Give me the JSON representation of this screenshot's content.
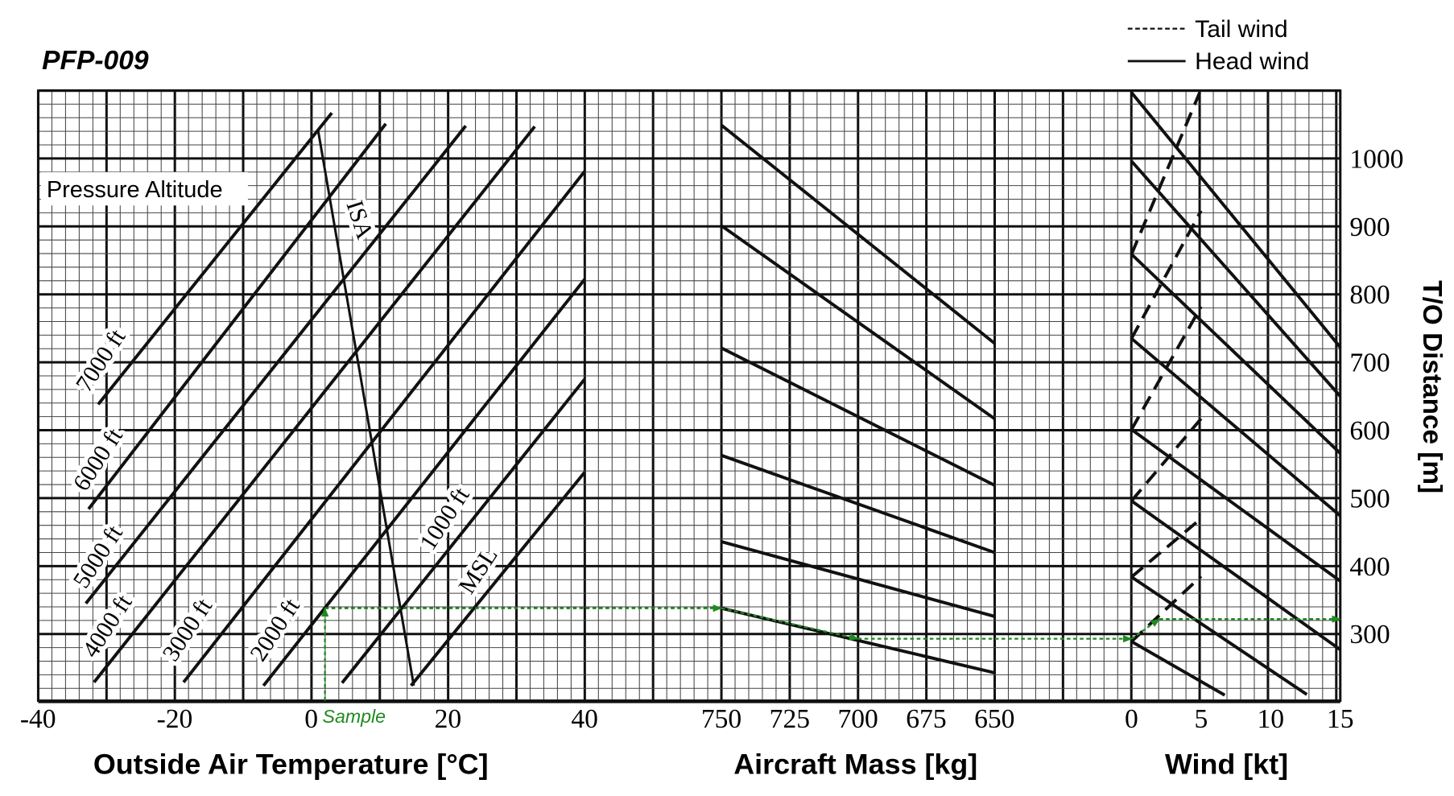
{
  "chart_data": {
    "type": "line",
    "title": "PFP-009",
    "ylabel": "T/O Distance [m]",
    "ylim": [
      200,
      1100
    ],
    "yticks": [
      300,
      400,
      500,
      600,
      700,
      800,
      900,
      1000
    ],
    "grid": true,
    "legend": {
      "position": "top-right",
      "tail_wind": "Tail wind",
      "head_wind": "Head wind"
    },
    "panels": [
      {
        "id": "temperature",
        "xlabel": "Outside Air Temperature [°C]",
        "xlim": [
          -40,
          40
        ],
        "xticks": [
          -40,
          -20,
          0,
          20,
          40
        ],
        "group_label": "Pressure Altitude",
        "series": [
          {
            "name": "7000 ft",
            "points": [
              [
                -31.2,
                638
              ],
              [
                3,
                1067
              ]
            ]
          },
          {
            "name": "6000 ft",
            "points": [
              [
                -32.6,
                484
              ],
              [
                10.9,
                1051
              ]
            ]
          },
          {
            "name": "5000 ft",
            "points": [
              [
                -33,
                345
              ],
              [
                22.6,
                1048
              ]
            ]
          },
          {
            "name": "4000 ft",
            "points": [
              [
                -31.8,
                229
              ],
              [
                32.7,
                1047
              ]
            ]
          },
          {
            "name": "3000 ft",
            "points": [
              [
                -18.7,
                229
              ],
              [
                40,
                981
              ]
            ]
          },
          {
            "name": "2000 ft",
            "points": [
              [
                -7,
                224
              ],
              [
                40,
                822
              ]
            ]
          },
          {
            "name": "1000 ft",
            "points": [
              [
                4.5,
                228
              ],
              [
                40,
                675
              ]
            ]
          },
          {
            "name": "MSL",
            "points": [
              [
                14.6,
                224
              ],
              [
                40,
                538
              ]
            ]
          }
        ],
        "isa": {
          "name": "ISA",
          "points": [
            [
              1,
              1041
            ],
            [
              15,
              224
            ]
          ]
        }
      },
      {
        "id": "mass",
        "xlabel": "Aircraft Mass [kg]",
        "xlim": [
          750,
          650
        ],
        "xticks": [
          750,
          725,
          700,
          675,
          650
        ],
        "series": [
          {
            "points": [
              [
                750,
                1049
              ],
              [
                650,
                728
              ]
            ]
          },
          {
            "points": [
              [
                750,
                901
              ],
              [
                650,
                617
              ]
            ]
          },
          {
            "points": [
              [
                750,
                721
              ],
              [
                650,
                519
              ]
            ]
          },
          {
            "points": [
              [
                750,
                563
              ],
              [
                650,
                420
              ]
            ]
          },
          {
            "points": [
              [
                750,
                436
              ],
              [
                650,
                326
              ]
            ]
          },
          {
            "points": [
              [
                750,
                338
              ],
              [
                650,
                243
              ]
            ]
          }
        ]
      },
      {
        "id": "wind",
        "xlabel": "Wind [kt]",
        "xlim": [
          0,
          15
        ],
        "xticks": [
          0,
          5,
          10,
          15
        ],
        "head_wind": [
          {
            "points": [
              [
                0,
                1097
              ],
              [
                15,
                722
              ]
            ]
          },
          {
            "points": [
              [
                0,
                996
              ],
              [
                15,
                650
              ]
            ]
          },
          {
            "points": [
              [
                0,
                859
              ],
              [
                15,
                566
              ]
            ]
          },
          {
            "points": [
              [
                0,
                735
              ],
              [
                15,
                474
              ]
            ]
          },
          {
            "points": [
              [
                0,
                601
              ],
              [
                15,
                378
              ]
            ]
          },
          {
            "points": [
              [
                0,
                496
              ],
              [
                15,
                277
              ]
            ]
          },
          {
            "points": [
              [
                0,
                384
              ],
              [
                12.6,
                211
              ]
            ]
          },
          {
            "points": [
              [
                0,
                289
              ],
              [
                6.7,
                210
              ]
            ]
          }
        ],
        "tail_wind": [
          {
            "points": [
              [
                0,
                859
              ],
              [
                4.9,
                1097
              ]
            ]
          },
          {
            "points": [
              [
                0,
                735
              ],
              [
                5,
                923
              ]
            ]
          },
          {
            "points": [
              [
                0,
                601
              ],
              [
                5,
                782
              ]
            ]
          },
          {
            "points": [
              [
                0,
                496
              ],
              [
                5,
                617
              ]
            ]
          },
          {
            "points": [
              [
                0,
                384
              ],
              [
                5,
                470
              ]
            ]
          },
          {
            "points": [
              [
                0,
                289
              ],
              [
                5,
                385
              ]
            ]
          }
        ]
      }
    ],
    "sample": {
      "label": "Sample",
      "color": "#1f8a1f",
      "path": [
        {
          "panel": "temperature",
          "x": 2,
          "y": 202
        },
        {
          "panel": "temperature",
          "x": 2,
          "y": 338
        },
        {
          "panel": "mass",
          "x": 750,
          "y": 338
        },
        {
          "panel": "mass",
          "x": 700,
          "y": 293
        },
        {
          "panel": "wind",
          "x": 0,
          "y": 293
        },
        {
          "panel": "wind",
          "x": 2,
          "y": 322
        },
        {
          "panel": "wind",
          "x": 15,
          "y": 322
        }
      ]
    }
  }
}
